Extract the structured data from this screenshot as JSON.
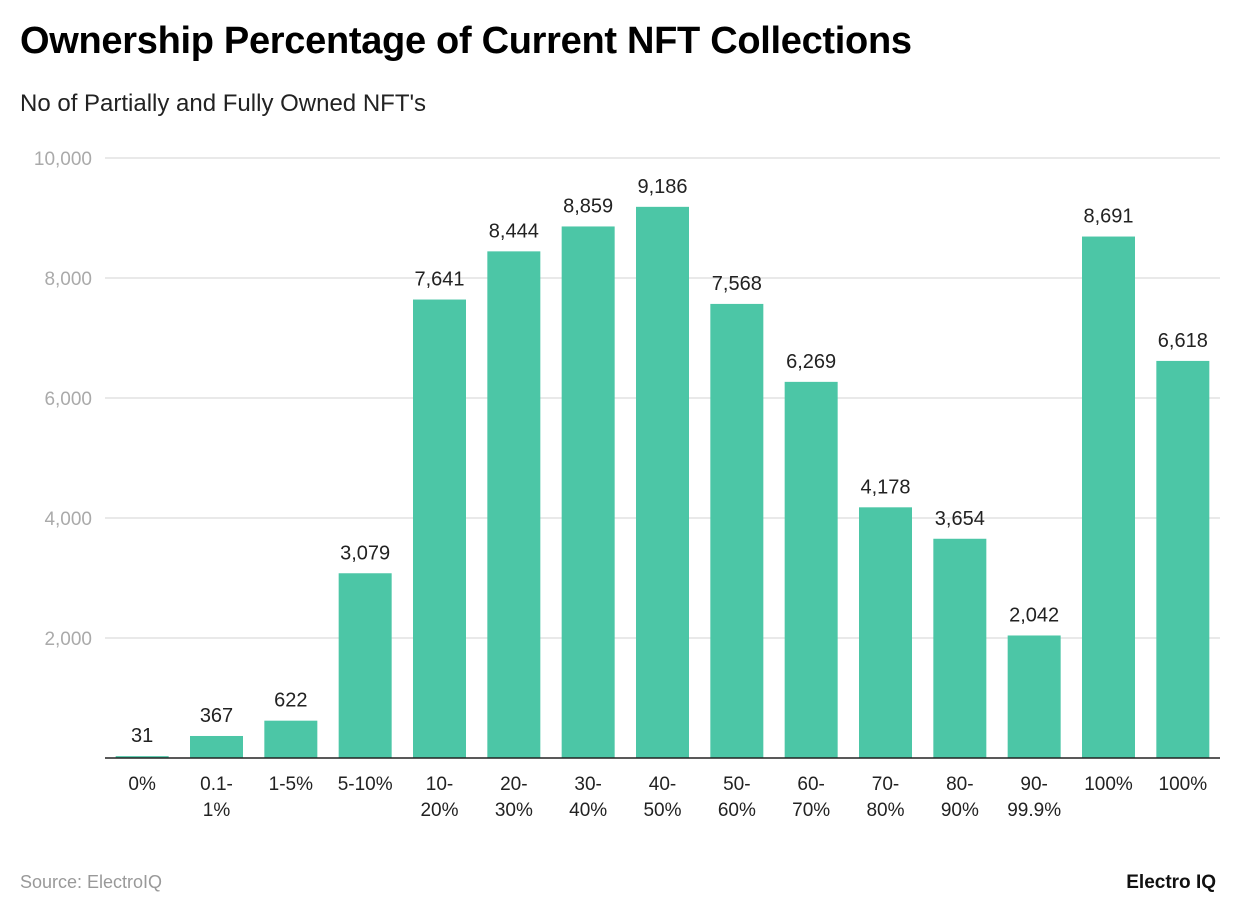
{
  "chart_data": {
    "type": "bar",
    "title": "Ownership Percentage of Current NFT Collections",
    "subtitle": "No of Partially and Fully Owned NFT's",
    "xlabel": "",
    "ylabel": "",
    "categories": [
      "0%",
      "0.1-\n1%",
      "1-5%",
      "5-10%",
      "10-\n20%",
      "20-\n30%",
      "30-\n40%",
      "40-\n50%",
      "50-\n60%",
      "60-\n70%",
      "70-\n80%",
      "80-\n90%",
      "90-\n99.9%",
      "100%",
      "100%"
    ],
    "values": [
      31,
      367,
      622,
      3079,
      7641,
      8444,
      8859,
      9186,
      7568,
      6269,
      4178,
      3654,
      2042,
      8691,
      6618
    ],
    "data_labels": [
      "31",
      "367",
      "622",
      "3,079",
      "7,641",
      "8,444",
      "8,859",
      "9,186",
      "7,568",
      "6,269",
      "4,178",
      "3,654",
      "2,042",
      "8,691",
      "6,618"
    ],
    "ylim": [
      0,
      10000
    ],
    "yticks": [
      2000,
      4000,
      6000,
      8000,
      10000
    ],
    "ytick_labels": [
      "2,000",
      "4,000",
      "6,000",
      "8,000",
      "10,000"
    ],
    "grid": true,
    "legend": "none",
    "bar_color": "#4cc6a6"
  },
  "footer": {
    "source": "Source: ElectroIQ",
    "logo": "Electro IQ"
  }
}
